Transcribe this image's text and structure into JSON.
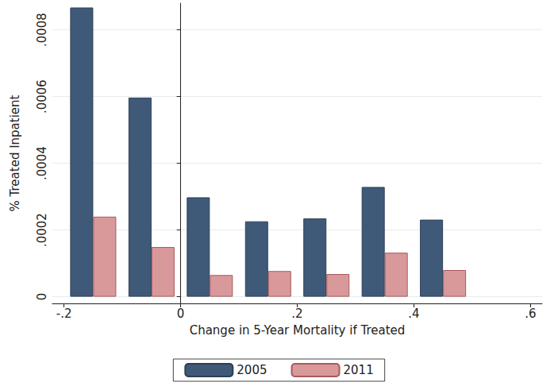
{
  "chart_data": {
    "type": "bar",
    "x_label": "Change in 5-Year Mortality if Treated",
    "y_label": "% Treated Inpatient",
    "x": [
      -0.15,
      -0.05,
      0.05,
      0.15,
      0.25,
      0.35,
      0.45
    ],
    "series": [
      {
        "name": "2005",
        "color": "#3f5a78",
        "values": [
          0.000867,
          0.000597,
          0.000298,
          0.000226,
          0.000235,
          0.000329,
          0.000231
        ]
      },
      {
        "name": "2011",
        "color": "#d9999b",
        "values": [
          0.00024,
          0.000149,
          6.5e-05,
          7.7e-05,
          6.8e-05,
          0.000132,
          8e-05
        ]
      }
    ],
    "xlim": [
      -0.22,
      0.62
    ],
    "xticks": [
      {
        "value": -0.2,
        "label": "-.2"
      },
      0,
      {
        "value": 0.2,
        "label": ".2"
      },
      {
        "value": 0.4,
        "label": ".4"
      },
      {
        "value": 0.6,
        "label": ".6"
      }
    ],
    "ylim": [
      -2e-05,
      0.00088
    ],
    "yticks": [
      0,
      {
        "value": 0.0002,
        "label": ".0002"
      },
      {
        "value": 0.0004,
        "label": ".0004"
      },
      {
        "value": 0.0006,
        "label": ".0006"
      },
      {
        "value": 0.0008,
        "label": ".0008"
      }
    ],
    "grid": true,
    "legend": "bottom"
  }
}
